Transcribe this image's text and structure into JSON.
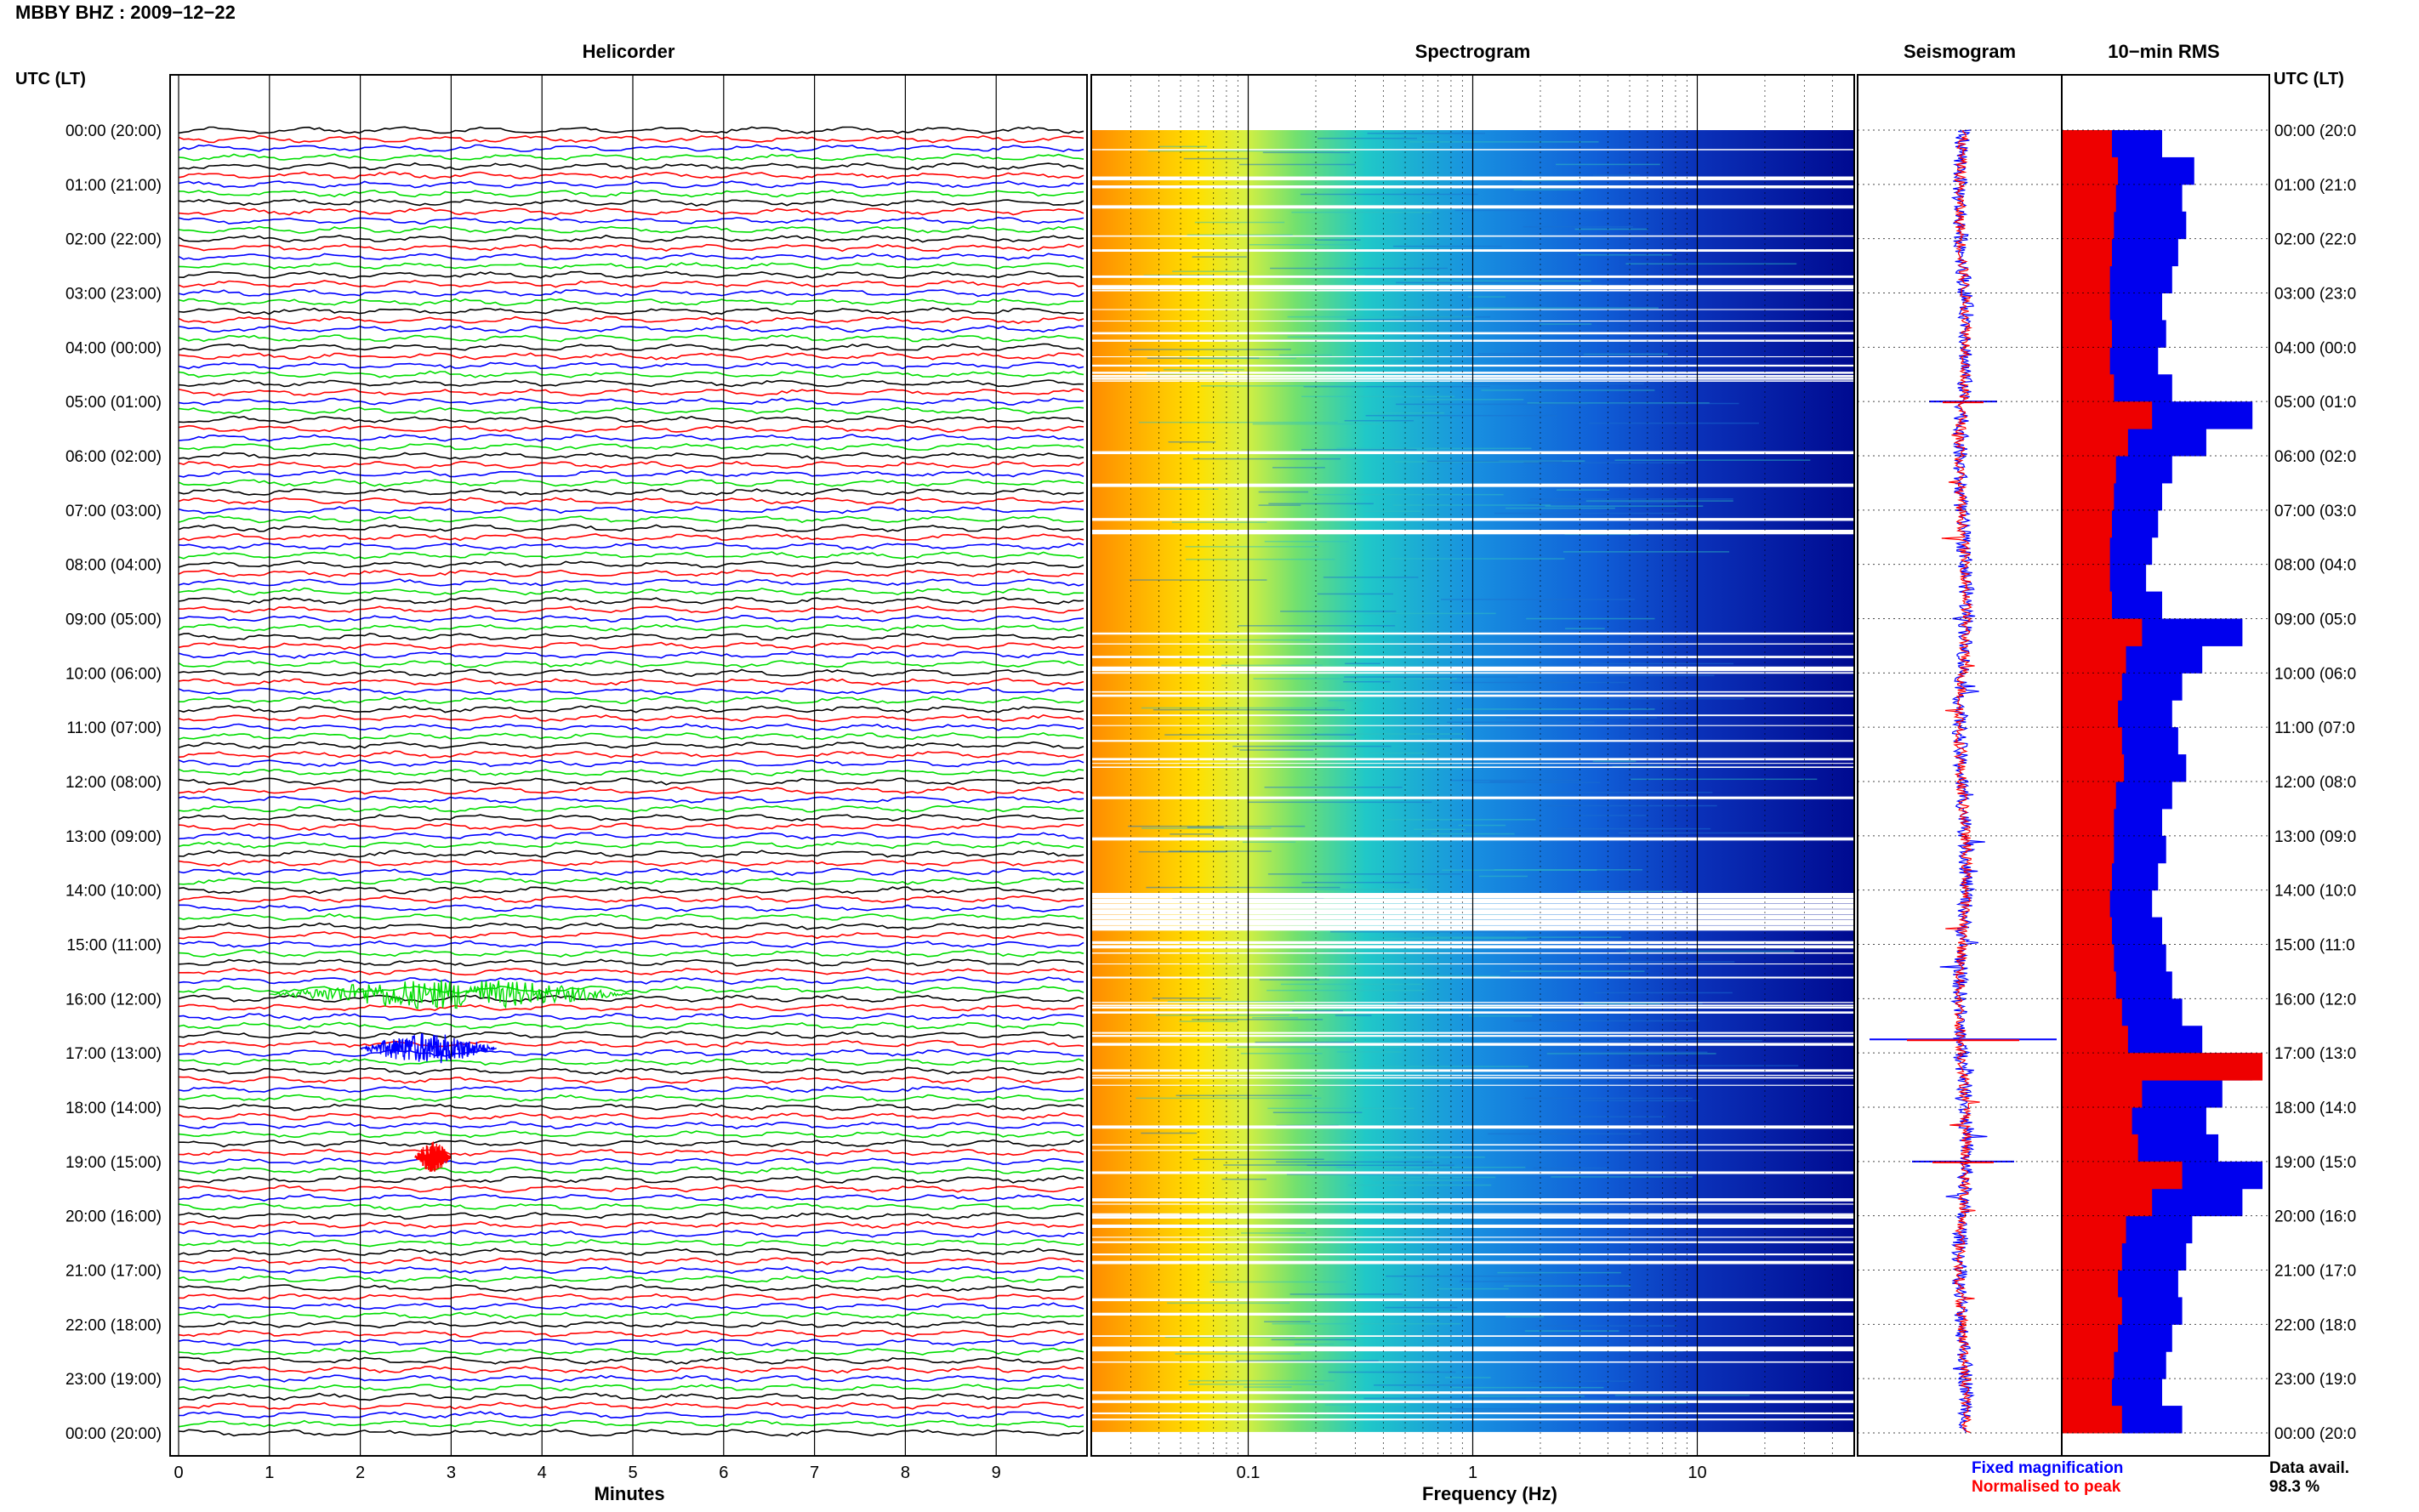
{
  "header": {
    "title": "MBBY BHZ : 2009−12−22"
  },
  "panels": {
    "helicorder": "Helicorder",
    "spectrogram": "Spectrogram",
    "seismogram": "Seismogram",
    "rms": "10−min RMS"
  },
  "axes": {
    "utc_header_left": "UTC (LT)",
    "utc_header_right": "UTC (LT)",
    "time_labels": [
      "00:00 (20:00)",
      "01:00 (21:00)",
      "02:00 (22:00)",
      "03:00 (23:00)",
      "04:00 (00:00)",
      "05:00 (01:00)",
      "06:00 (02:00)",
      "07:00 (03:00)",
      "08:00 (04:00)",
      "09:00 (05:00)",
      "10:00 (06:00)",
      "11:00 (07:00)",
      "12:00 (08:00)",
      "13:00 (09:00)",
      "14:00 (10:00)",
      "15:00 (11:00)",
      "16:00 (12:00)",
      "17:00 (13:00)",
      "18:00 (14:00)",
      "19:00 (15:00)",
      "20:00 (16:00)",
      "21:00 (17:00)",
      "22:00 (18:00)",
      "23:00 (19:00)",
      "00:00 (20:00)"
    ],
    "time_labels_right": [
      "00:00 (20:0",
      "01:00 (21:0",
      "02:00 (22:0",
      "03:00 (23:0",
      "04:00 (00:0",
      "05:00 (01:0",
      "06:00 (02:0",
      "07:00 (03:0",
      "08:00 (04:0",
      "09:00 (05:0",
      "10:00 (06:0",
      "11:00 (07:0",
      "12:00 (08:0",
      "13:00 (09:0",
      "14:00 (10:0",
      "15:00 (11:0",
      "16:00 (12:0",
      "17:00 (13:0",
      "18:00 (14:0",
      "19:00 (15:0",
      "20:00 (16:0",
      "21:00 (17:0",
      "22:00 (18:0",
      "23:00 (19:0",
      "00:00 (20:0"
    ],
    "minute_ticks": [
      "0",
      "1",
      "2",
      "3",
      "4",
      "5",
      "6",
      "7",
      "8",
      "9"
    ],
    "minutes_label": "Minutes",
    "freq_ticks": [
      "0.1",
      "1",
      "10"
    ],
    "freq_label": "Frequency (Hz)"
  },
  "legend": {
    "fixed": "Fixed magnification",
    "normalised": "Normalised to peak",
    "fixed_color": "#0000ff",
    "normalised_color": "#ff0000"
  },
  "data_avail": {
    "label": "Data avail.",
    "value": "98.3 %"
  },
  "colors": {
    "trace_cycle": [
      "#000000",
      "#ff0000",
      "#0000ff",
      "#00dd00"
    ]
  },
  "chart_data": [
    {
      "type": "line",
      "name": "helicorder",
      "x_unit": "minutes",
      "xlim": [
        0,
        10
      ],
      "rows_per_hour": 6,
      "hours": 24,
      "notable_bursts": [
        {
          "hour": 16,
          "minutes": [
            1.0,
            5.0
          ],
          "color": "#00dd00"
        },
        {
          "hour": 17,
          "minutes": [
            2.0,
            3.5
          ],
          "color": "#0000ff"
        },
        {
          "hour": 19,
          "minutes": [
            2.6,
            3.0
          ],
          "color": "#ff0000"
        }
      ]
    },
    {
      "type": "heatmap",
      "name": "spectrogram",
      "x_scale": "log",
      "xlim": [
        0.02,
        50
      ],
      "gaps_hours": [
        14.1,
        14.2,
        14.3,
        14.4,
        14.5,
        14.6,
        14.7
      ]
    },
    {
      "type": "line",
      "name": "seismogram",
      "series": [
        {
          "name": "Fixed magnification"
        },
        {
          "name": "Normalised to peak"
        }
      ]
    },
    {
      "type": "bar",
      "name": "rms",
      "categories_hours": [
        0,
        0.5,
        1,
        1.5,
        2,
        2.5,
        3,
        3.5,
        4,
        4.5,
        5,
        5.5,
        6,
        6.5,
        7,
        7.5,
        8,
        8.5,
        9,
        9.5,
        10,
        10.5,
        11,
        11.5,
        12,
        12.5,
        13,
        13.5,
        14,
        14.5,
        15,
        15.5,
        16,
        16.5,
        17,
        17.5,
        18,
        18.5,
        19,
        19.5,
        20,
        20.5,
        21,
        21.5,
        22,
        22.5,
        23,
        23.5
      ],
      "series": [
        {
          "name": "Fixed magnification",
          "values": [
            50,
            66,
            60,
            62,
            58,
            55,
            50,
            52,
            48,
            55,
            95,
            72,
            55,
            50,
            48,
            45,
            42,
            50,
            90,
            70,
            60,
            55,
            58,
            62,
            55,
            50,
            52,
            48,
            45,
            50,
            52,
            55,
            60,
            70,
            95,
            80,
            72,
            78,
            100,
            90,
            65,
            62,
            58,
            60,
            55,
            52,
            50,
            60
          ]
        },
        {
          "name": "Normalised to peak",
          "values": [
            25,
            28,
            27,
            26,
            25,
            24,
            24,
            25,
            24,
            26,
            45,
            33,
            27,
            26,
            25,
            24,
            24,
            25,
            40,
            32,
            30,
            28,
            30,
            31,
            27,
            26,
            26,
            25,
            24,
            25,
            26,
            27,
            30,
            33,
            100,
            40,
            35,
            38,
            60,
            45,
            32,
            30,
            28,
            30,
            28,
            26,
            25,
            30
          ]
        }
      ]
    }
  ]
}
